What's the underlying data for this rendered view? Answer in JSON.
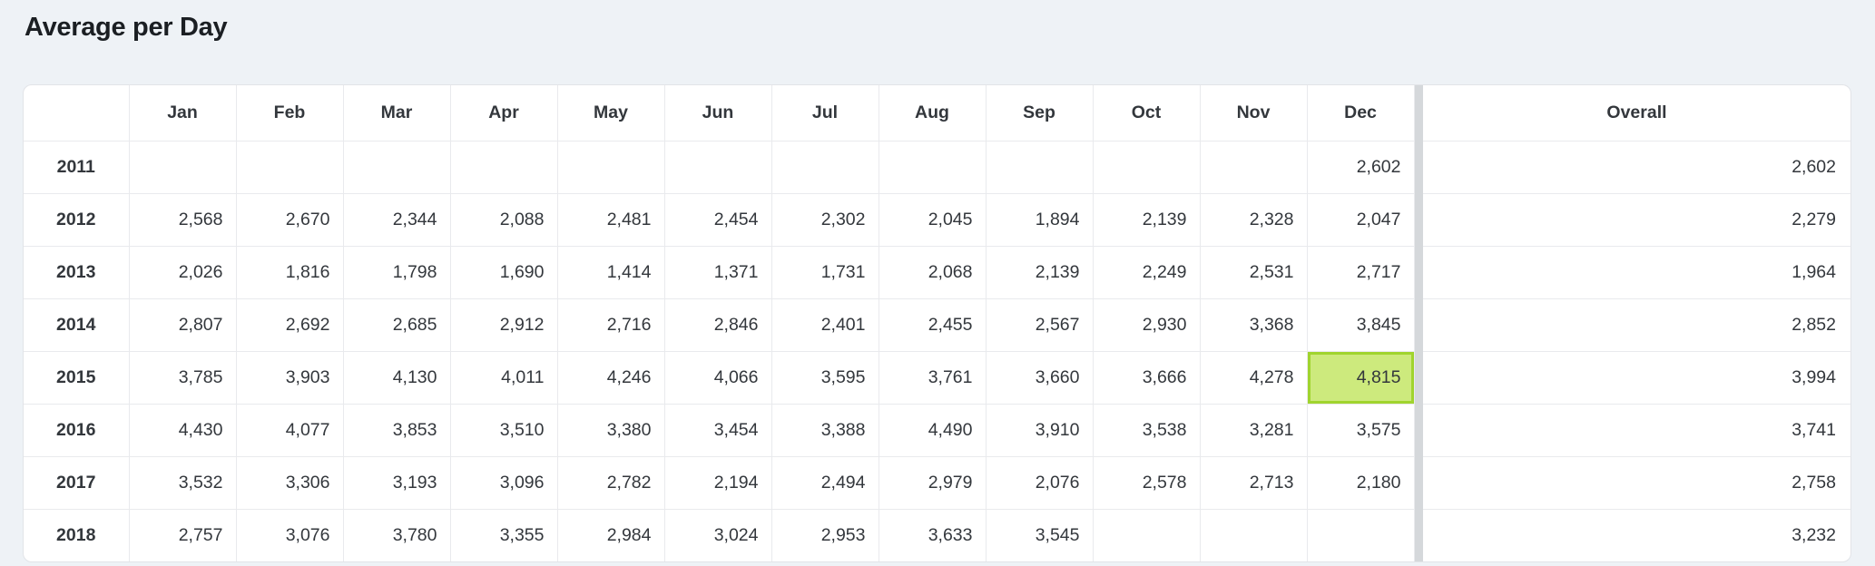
{
  "page": {
    "title": "Average per Day"
  },
  "table": {
    "year_header": "",
    "months": [
      "Jan",
      "Feb",
      "Mar",
      "Apr",
      "May",
      "Jun",
      "Jul",
      "Aug",
      "Sep",
      "Oct",
      "Nov",
      "Dec"
    ],
    "overall_label": "Overall",
    "rows": [
      {
        "year": "2011",
        "values": [
          "",
          "",
          "",
          "",
          "",
          "",
          "",
          "",
          "",
          "",
          "",
          "2,602"
        ],
        "overall": "2,602"
      },
      {
        "year": "2012",
        "values": [
          "2,568",
          "2,670",
          "2,344",
          "2,088",
          "2,481",
          "2,454",
          "2,302",
          "2,045",
          "1,894",
          "2,139",
          "2,328",
          "2,047"
        ],
        "overall": "2,279"
      },
      {
        "year": "2013",
        "values": [
          "2,026",
          "1,816",
          "1,798",
          "1,690",
          "1,414",
          "1,371",
          "1,731",
          "2,068",
          "2,139",
          "2,249",
          "2,531",
          "2,717"
        ],
        "overall": "1,964"
      },
      {
        "year": "2014",
        "values": [
          "2,807",
          "2,692",
          "2,685",
          "2,912",
          "2,716",
          "2,846",
          "2,401",
          "2,455",
          "2,567",
          "2,930",
          "3,368",
          "3,845"
        ],
        "overall": "2,852"
      },
      {
        "year": "2015",
        "values": [
          "3,785",
          "3,903",
          "4,130",
          "4,011",
          "4,246",
          "4,066",
          "3,595",
          "3,761",
          "3,660",
          "3,666",
          "4,278",
          "4,815"
        ],
        "overall": "3,994"
      },
      {
        "year": "2016",
        "values": [
          "4,430",
          "4,077",
          "3,853",
          "3,510",
          "3,380",
          "3,454",
          "3,388",
          "4,490",
          "3,910",
          "3,538",
          "3,281",
          "3,575"
        ],
        "overall": "3,741"
      },
      {
        "year": "2017",
        "values": [
          "3,532",
          "3,306",
          "3,193",
          "3,096",
          "2,782",
          "2,194",
          "2,494",
          "2,979",
          "2,076",
          "2,578",
          "2,713",
          "2,180"
        ],
        "overall": "2,758"
      },
      {
        "year": "2018",
        "values": [
          "2,757",
          "3,076",
          "3,780",
          "3,355",
          "2,984",
          "3,024",
          "2,953",
          "3,633",
          "3,545",
          "",
          "",
          ""
        ],
        "overall": "3,232"
      }
    ],
    "highlight": {
      "row_year": "2015",
      "month": "Dec",
      "value": "4,815"
    }
  },
  "colors": {
    "page_bg": "#eef2f6",
    "table_bg": "#ffffff",
    "cell_border": "#e9eaed",
    "column_divider": "#d5d8db",
    "text": "#33373c",
    "title_text": "#1b1f23",
    "highlight_bg": "#cdea7d",
    "highlight_border": "#a0d42e"
  }
}
